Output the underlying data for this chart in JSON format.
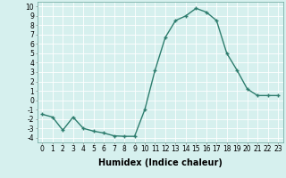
{
  "x": [
    0,
    1,
    2,
    3,
    4,
    5,
    6,
    7,
    8,
    9,
    10,
    11,
    12,
    13,
    14,
    15,
    16,
    17,
    18,
    19,
    20,
    21,
    22,
    23
  ],
  "y": [
    -1.5,
    -1.8,
    -3.2,
    -1.8,
    -3.0,
    -3.3,
    -3.5,
    -3.8,
    -3.85,
    -3.85,
    -1.0,
    3.2,
    6.7,
    8.5,
    9.0,
    9.8,
    9.4,
    8.5,
    5.0,
    3.2,
    1.2,
    0.5,
    0.5,
    0.5
  ],
  "line_color": "#2e7d6e",
  "marker": "+",
  "bg_color": "#d6f0ee",
  "grid_color": "#ffffff",
  "xlabel": "Humidex (Indice chaleur)",
  "ylim": [
    -4.5,
    10.5
  ],
  "xlim": [
    -0.5,
    23.5
  ],
  "yticks": [
    -4,
    -3,
    -2,
    -1,
    0,
    1,
    2,
    3,
    4,
    5,
    6,
    7,
    8,
    9,
    10
  ],
  "xticks": [
    0,
    1,
    2,
    3,
    4,
    5,
    6,
    7,
    8,
    9,
    10,
    11,
    12,
    13,
    14,
    15,
    16,
    17,
    18,
    19,
    20,
    21,
    22,
    23
  ],
  "xlabel_fontsize": 7,
  "tick_fontsize": 5.5,
  "linewidth": 1.0,
  "markersize": 3.5
}
